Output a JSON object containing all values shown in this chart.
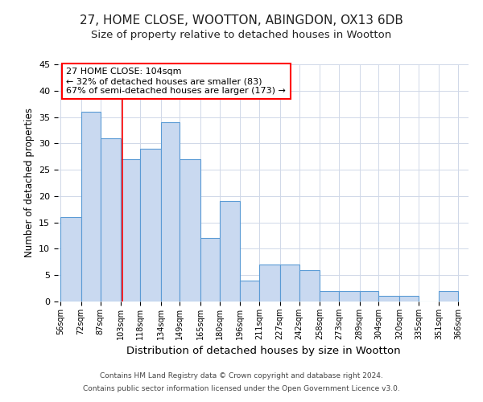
{
  "title1": "27, HOME CLOSE, WOOTTON, ABINGDON, OX13 6DB",
  "title2": "Size of property relative to detached houses in Wootton",
  "xlabel": "Distribution of detached houses by size in Wootton",
  "ylabel": "Number of detached properties",
  "footer1": "Contains HM Land Registry data © Crown copyright and database right 2024.",
  "footer2": "Contains public sector information licensed under the Open Government Licence v3.0.",
  "annotation_title": "27 HOME CLOSE: 104sqm",
  "annotation_line1": "← 32% of detached houses are smaller (83)",
  "annotation_line2": "67% of semi-detached houses are larger (173) →",
  "bar_left_edges": [
    56,
    72,
    87,
    103,
    118,
    134,
    149,
    165,
    180,
    196,
    211,
    227,
    242,
    258,
    273,
    289,
    304,
    320,
    335,
    351
  ],
  "bar_widths": [
    16,
    15,
    16,
    15,
    16,
    15,
    16,
    15,
    16,
    15,
    16,
    15,
    16,
    15,
    16,
    15,
    16,
    15,
    16,
    15
  ],
  "bar_heights": [
    16,
    36,
    31,
    27,
    29,
    34,
    27,
    12,
    19,
    4,
    7,
    7,
    6,
    2,
    2,
    2,
    1,
    1,
    0,
    2
  ],
  "bar_color": "#c9d9f0",
  "bar_edge_color": "#5b9bd5",
  "red_line_x": 104,
  "ylim": [
    0,
    45
  ],
  "yticks": [
    0,
    5,
    10,
    15,
    20,
    25,
    30,
    35,
    40,
    45
  ],
  "x_tick_labels": [
    "56sqm",
    "72sqm",
    "87sqm",
    "103sqm",
    "118sqm",
    "134sqm",
    "149sqm",
    "165sqm",
    "180sqm",
    "196sqm",
    "211sqm",
    "227sqm",
    "242sqm",
    "258sqm",
    "273sqm",
    "289sqm",
    "304sqm",
    "320sqm",
    "335sqm",
    "351sqm",
    "366sqm"
  ],
  "x_tick_positions": [
    56,
    72,
    87,
    103,
    118,
    134,
    149,
    165,
    180,
    196,
    211,
    227,
    242,
    258,
    273,
    289,
    304,
    320,
    335,
    351,
    366
  ],
  "background_color": "#ffffff",
  "grid_color": "#d0d8e8",
  "title1_fontsize": 11,
  "title2_fontsize": 9.5,
  "xlabel_fontsize": 9.5,
  "ylabel_fontsize": 8.5,
  "annotation_fontsize": 8,
  "footer_fontsize": 6.5
}
